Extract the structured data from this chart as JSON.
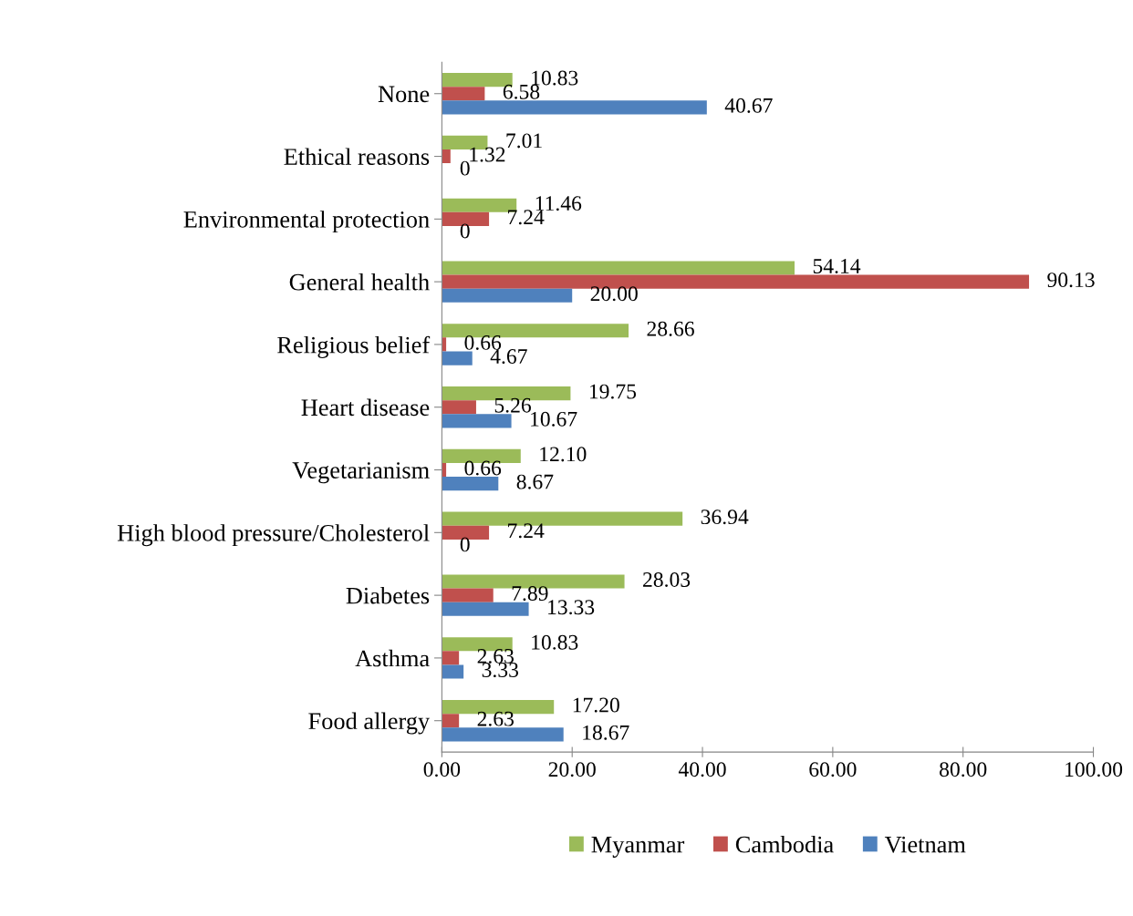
{
  "chart_data": {
    "type": "bar",
    "orientation": "horizontal",
    "categories": [
      "None",
      "Ethical reasons",
      "Environmental protection",
      "General health",
      "Religious belief",
      "Heart disease",
      "Vegetarianism",
      "High blood pressure/Cholesterol",
      "Diabetes",
      "Asthma",
      "Food allergy"
    ],
    "series": [
      {
        "name": "Myanmar",
        "color": "#9bbb59",
        "values": [
          10.83,
          7.01,
          11.46,
          54.14,
          28.66,
          19.75,
          12.1,
          36.94,
          28.03,
          10.83,
          17.2
        ],
        "value_labels": [
          "10.83",
          "7.01",
          "11.46",
          "54.14",
          "28.66",
          "19.75",
          "12.10",
          "36.94",
          "28.03",
          "10.83",
          "17.20"
        ]
      },
      {
        "name": "Cambodia",
        "color": "#c0504d",
        "values": [
          6.58,
          1.32,
          7.24,
          90.13,
          0.66,
          5.26,
          0.66,
          7.24,
          7.89,
          2.63,
          2.63
        ],
        "value_labels": [
          "6.58",
          "1.32",
          "7.24",
          "90.13",
          "0.66",
          "5.26",
          "0.66",
          "7.24",
          "7.89",
          "2.63",
          "2.63"
        ]
      },
      {
        "name": "Vietnam",
        "color": "#4f81bd",
        "values": [
          40.67,
          0,
          0,
          20.0,
          4.67,
          10.67,
          8.67,
          0,
          13.33,
          3.33,
          18.67
        ],
        "value_labels": [
          "40.67",
          "0",
          "0",
          "20.00",
          "4.67",
          "10.67",
          "8.67",
          "0",
          "13.33",
          "3.33",
          "18.67"
        ]
      }
    ],
    "xlim": [
      0,
      100
    ],
    "xticks": [
      {
        "value": 0,
        "label": "0.00"
      },
      {
        "value": 20,
        "label": "20.00"
      },
      {
        "value": 40,
        "label": "40.00"
      },
      {
        "value": 60,
        "label": "60.00"
      },
      {
        "value": 80,
        "label": "80.00"
      },
      {
        "value": 100,
        "label": "100.00"
      }
    ],
    "grid": false,
    "legend": "bottom"
  }
}
